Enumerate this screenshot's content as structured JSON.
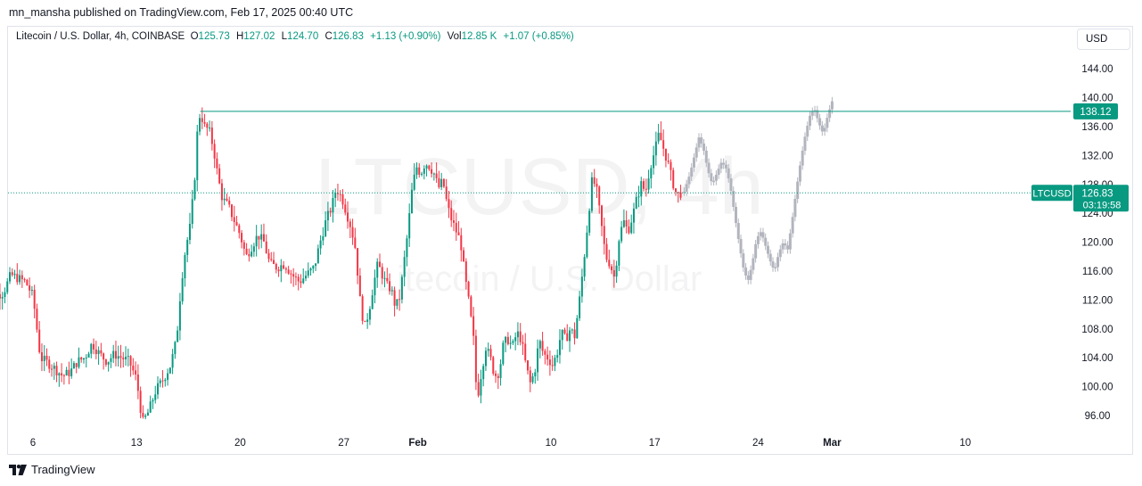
{
  "publish_line": "mn_mansha published on TradingView.com, Feb 17, 2025 00:40 UTC",
  "legend": {
    "symbol": "Litecoin / U.S. Dollar, 4h, COINBASE",
    "o_label": "O",
    "o": "125.73",
    "h_label": "H",
    "h": "127.02",
    "l_label": "L",
    "l": "124.70",
    "c_label": "C",
    "c": "126.83",
    "change": "+1.13 (+0.90%)",
    "vol_label": "Vol",
    "vol": "12.85 K",
    "vol_change": "+1.07 (+0.85%)"
  },
  "currency_button": "USD",
  "watermark": {
    "ticker": "LTCUSD, 4h",
    "name": "Litecoin / U.S. Dollar"
  },
  "footer_brand": "TradingView",
  "colors": {
    "up": "#089981",
    "down": "#f23645",
    "projection": "#b2b5be",
    "line": "#089981"
  },
  "chart_data": {
    "type": "candlestick",
    "symbol": "LTCUSD",
    "interval": "4h",
    "y_ticks": [
      96,
      100,
      104,
      108,
      112,
      116,
      120,
      124,
      128,
      132,
      136,
      140,
      144
    ],
    "y_tick_labels": [
      "96.00",
      "100.00",
      "104.00",
      "108.00",
      "112.00",
      "116.00",
      "120.00",
      "124.00",
      "128.00",
      "132.00",
      "136.00",
      "140.00",
      "144.00"
    ],
    "x_tick_labels": [
      "6",
      "13",
      "20",
      "27",
      "Feb",
      "10",
      "17",
      "24",
      "Mar",
      "10"
    ],
    "x_tick_days": [
      6,
      13,
      20,
      27,
      32,
      41,
      48,
      55,
      60,
      69
    ],
    "x_axis_start_day": "Jan",
    "ylim": [
      93,
      148
    ],
    "horizontal_line": {
      "value": 138.12,
      "label": "138.12"
    },
    "last_price": {
      "value": 126.83,
      "label": "126.83",
      "countdown": "03:19:58",
      "symbol_tag": "LTCUSD"
    },
    "price_path": [
      [
        2.6,
        110.5
      ],
      [
        3.3,
        112.5
      ],
      [
        4.0,
        113.0
      ],
      [
        4.5,
        115.5
      ],
      [
        5.0,
        115.0
      ],
      [
        5.5,
        114.5
      ],
      [
        6.0,
        112.5
      ],
      [
        6.5,
        104.0
      ],
      [
        7.2,
        103.0
      ],
      [
        8.0,
        101.5
      ],
      [
        8.5,
        102.0
      ],
      [
        9.0,
        103.5
      ],
      [
        9.5,
        104.0
      ],
      [
        10.0,
        106.0
      ],
      [
        10.5,
        104.5
      ],
      [
        11.0,
        103.5
      ],
      [
        11.5,
        104.5
      ],
      [
        12.0,
        104.0
      ],
      [
        12.5,
        103.5
      ],
      [
        13.0,
        101.0
      ],
      [
        13.4,
        95.0
      ],
      [
        13.8,
        96.5
      ],
      [
        14.3,
        99.5
      ],
      [
        14.8,
        101.0
      ],
      [
        15.3,
        103.0
      ],
      [
        15.7,
        106.5
      ],
      [
        16.0,
        114.0
      ],
      [
        16.3,
        119.0
      ],
      [
        16.6,
        122.0
      ],
      [
        16.9,
        128.0
      ],
      [
        17.1,
        135.0
      ],
      [
        17.3,
        138.0
      ],
      [
        17.6,
        136.0
      ],
      [
        17.9,
        135.5
      ],
      [
        18.2,
        133.0
      ],
      [
        18.5,
        129.0
      ],
      [
        18.8,
        126.0
      ],
      [
        19.2,
        125.0
      ],
      [
        19.6,
        123.0
      ],
      [
        20.0,
        121.0
      ],
      [
        20.4,
        118.0
      ],
      [
        20.8,
        119.5
      ],
      [
        21.2,
        121.0
      ],
      [
        21.6,
        120.0
      ],
      [
        22.0,
        117.0
      ],
      [
        22.5,
        116.5
      ],
      [
        23.0,
        117.0
      ],
      [
        23.5,
        115.5
      ],
      [
        24.0,
        114.5
      ],
      [
        24.5,
        115.5
      ],
      [
        25.0,
        116.5
      ],
      [
        25.4,
        120.0
      ],
      [
        25.8,
        123.0
      ],
      [
        26.2,
        125.0
      ],
      [
        26.5,
        127.5
      ],
      [
        26.9,
        126.0
      ],
      [
        27.2,
        124.0
      ],
      [
        27.5,
        122.0
      ],
      [
        27.8,
        119.0
      ],
      [
        28.1,
        112.0
      ],
      [
        28.4,
        108.0
      ],
      [
        28.7,
        110.5
      ],
      [
        29.0,
        114.0
      ],
      [
        29.3,
        117.0
      ],
      [
        29.6,
        115.5
      ],
      [
        29.9,
        114.0
      ],
      [
        30.2,
        113.5
      ],
      [
        30.5,
        111.0
      ],
      [
        30.8,
        112.5
      ],
      [
        31.0,
        116.0
      ],
      [
        31.3,
        121.0
      ],
      [
        31.6,
        127.0
      ],
      [
        31.9,
        130.5
      ],
      [
        32.2,
        129.5
      ],
      [
        32.5,
        131.0
      ],
      [
        32.8,
        130.5
      ],
      [
        33.1,
        129.5
      ],
      [
        33.4,
        127.5
      ],
      [
        33.7,
        128.5
      ],
      [
        34.0,
        125.0
      ],
      [
        34.3,
        123.0
      ],
      [
        34.6,
        121.5
      ],
      [
        34.9,
        120.0
      ],
      [
        35.2,
        115.0
      ],
      [
        35.5,
        111.0
      ],
      [
        35.8,
        106.0
      ],
      [
        36.0,
        98.0
      ],
      [
        36.3,
        102.0
      ],
      [
        36.6,
        105.5
      ],
      [
        36.9,
        104.0
      ],
      [
        37.2,
        101.5
      ],
      [
        37.5,
        102.0
      ],
      [
        37.8,
        106.0
      ],
      [
        38.1,
        106.5
      ],
      [
        38.4,
        105.5
      ],
      [
        38.7,
        107.5
      ],
      [
        39.0,
        106.5
      ],
      [
        39.3,
        103.0
      ],
      [
        39.6,
        100.5
      ],
      [
        39.9,
        102.0
      ],
      [
        40.2,
        106.5
      ],
      [
        40.5,
        104.5
      ],
      [
        40.8,
        104.0
      ],
      [
        41.1,
        103.0
      ],
      [
        41.4,
        104.5
      ],
      [
        41.7,
        107.5
      ],
      [
        42.0,
        106.5
      ],
      [
        42.3,
        108.0
      ],
      [
        42.6,
        107.0
      ],
      [
        42.9,
        111.5
      ],
      [
        43.2,
        117.0
      ],
      [
        43.5,
        123.0
      ],
      [
        43.8,
        129.0
      ],
      [
        44.1,
        127.0
      ],
      [
        44.4,
        122.5
      ],
      [
        44.7,
        118.0
      ],
      [
        45.0,
        117.0
      ],
      [
        45.3,
        115.0
      ],
      [
        45.6,
        120.5
      ],
      [
        45.9,
        123.0
      ],
      [
        46.2,
        121.5
      ],
      [
        46.5,
        123.5
      ],
      [
        46.8,
        126.0
      ],
      [
        47.1,
        128.0
      ],
      [
        47.4,
        127.0
      ],
      [
        47.7,
        130.5
      ],
      [
        48.0,
        132.5
      ],
      [
        48.3,
        135.0
      ],
      [
        48.6,
        133.0
      ],
      [
        48.9,
        131.0
      ],
      [
        49.2,
        128.5
      ],
      [
        49.5,
        126.5
      ],
      [
        49.8,
        126.83
      ]
    ],
    "projection_path": [
      [
        50.0,
        127.0
      ],
      [
        50.4,
        129.5
      ],
      [
        50.7,
        132.0
      ],
      [
        51.0,
        134.5
      ],
      [
        51.3,
        133.0
      ],
      [
        51.6,
        130.0
      ],
      [
        51.9,
        128.0
      ],
      [
        52.2,
        129.5
      ],
      [
        52.5,
        131.0
      ],
      [
        52.8,
        130.5
      ],
      [
        53.1,
        128.0
      ],
      [
        53.4,
        124.0
      ],
      [
        53.7,
        120.0
      ],
      [
        54.0,
        116.5
      ],
      [
        54.3,
        114.5
      ],
      [
        54.6,
        117.0
      ],
      [
        54.9,
        120.5
      ],
      [
        55.2,
        121.5
      ],
      [
        55.5,
        119.5
      ],
      [
        55.8,
        117.5
      ],
      [
        56.1,
        116.0
      ],
      [
        56.4,
        118.5
      ],
      [
        56.7,
        120.0
      ],
      [
        57.0,
        119.0
      ],
      [
        57.3,
        123.0
      ],
      [
        57.6,
        127.5
      ],
      [
        57.9,
        131.5
      ],
      [
        58.2,
        135.0
      ],
      [
        58.5,
        137.5
      ],
      [
        58.8,
        138.5
      ],
      [
        59.1,
        136.5
      ],
      [
        59.4,
        135.0
      ],
      [
        59.7,
        137.5
      ],
      [
        60.0,
        139.5
      ]
    ]
  }
}
